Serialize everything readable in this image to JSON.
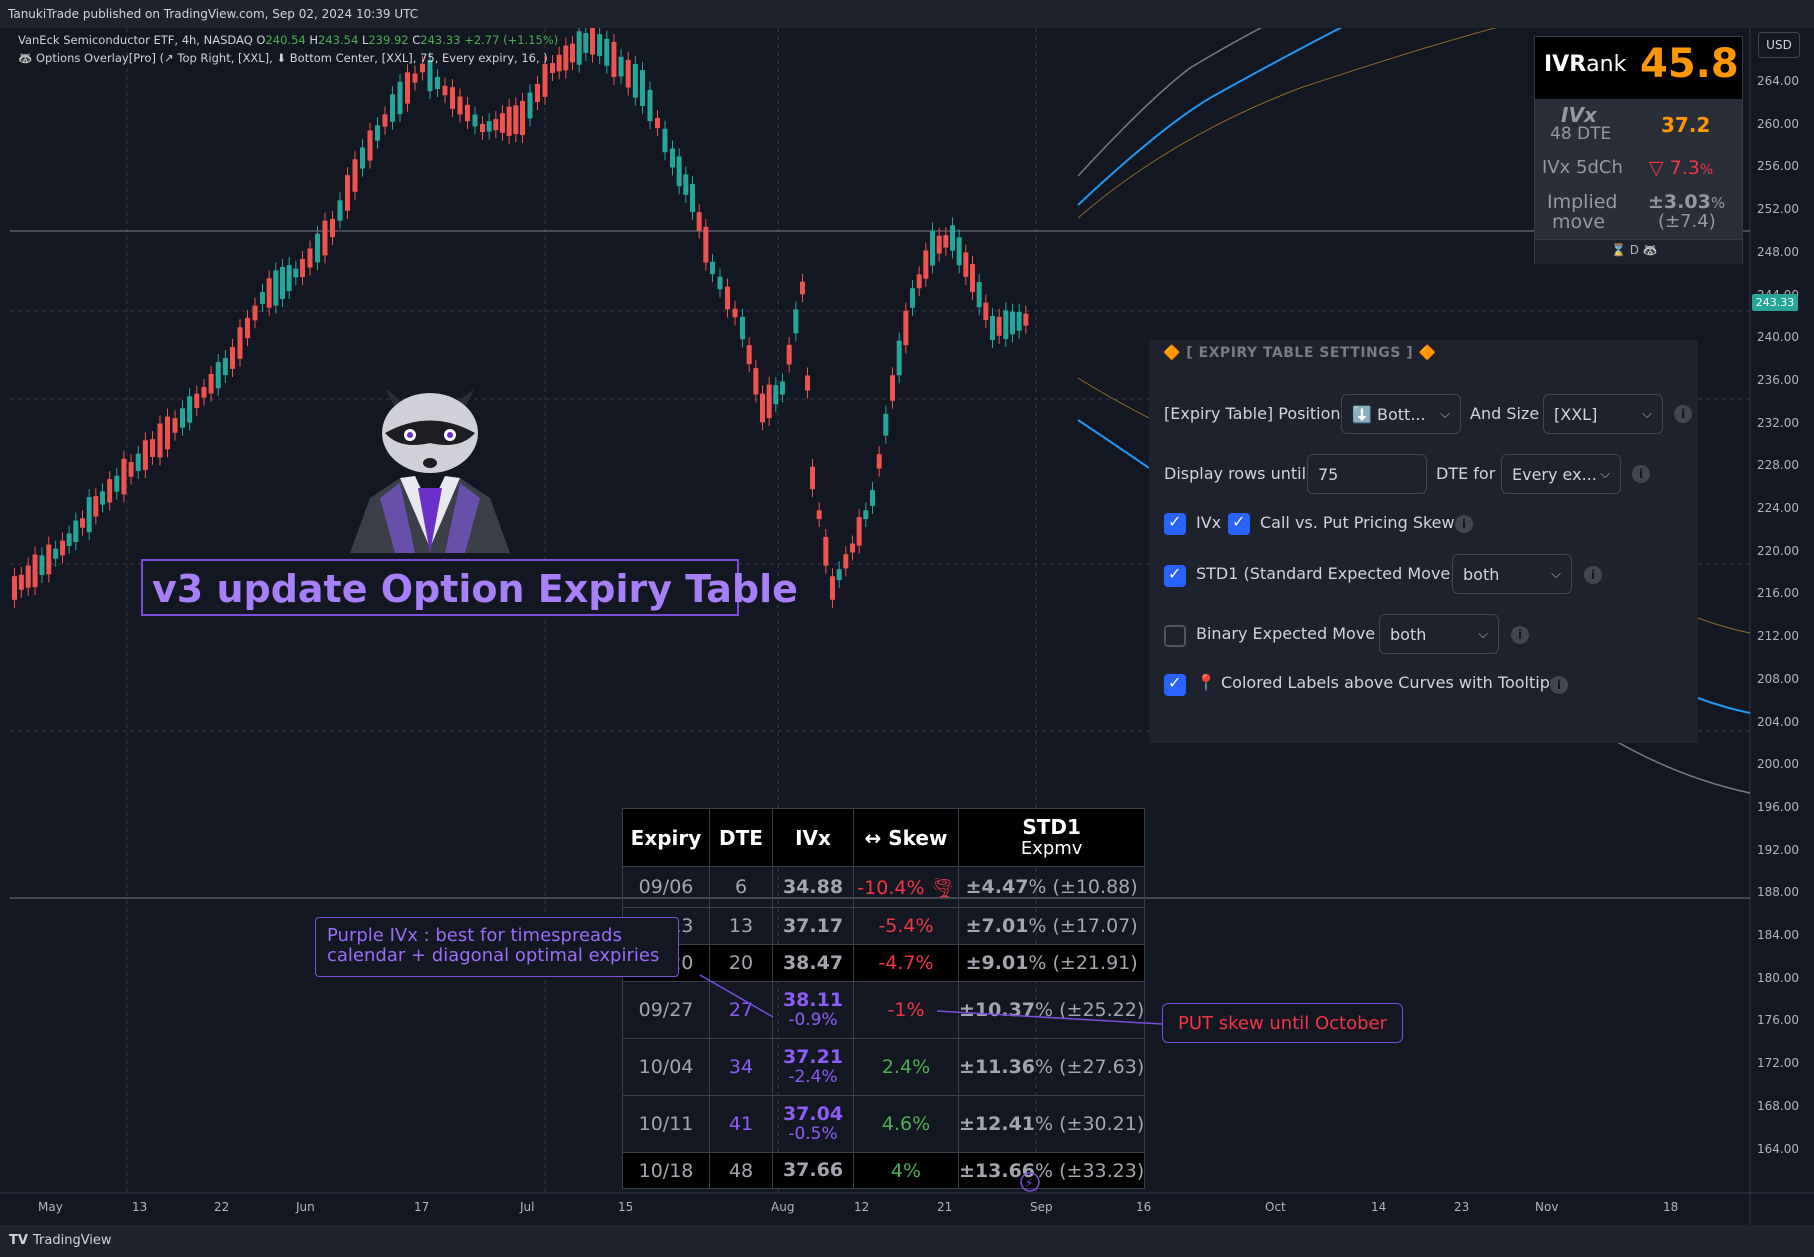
{
  "header": {
    "published": "TanukiTrade published on TradingView.com, Sep 02, 2024 10:39 UTC"
  },
  "legend": {
    "symbol_line": "VanEck Semiconductor ETF, 4h, NASDAQ",
    "o_label": "O",
    "o_value": "240.54",
    "h_label": "H",
    "h_value": "243.54",
    "l_label": "L",
    "l_value": "239.92",
    "c_label": "C",
    "c_value": "243.33",
    "change": "+2.77 (+1.15%)",
    "indicator": "Options Overlay[Pro] (↗ Top Right, [XXL], ⬇ Bottom Center, [XXL], 75, Every expiry, 16, )"
  },
  "price_axis": {
    "currency": "USD",
    "current_price": "243.33",
    "ticks": [
      "264.00",
      "260.00",
      "256.00",
      "252.00",
      "248.00",
      "244.00",
      "240.00",
      "236.00",
      "232.00",
      "228.00",
      "224.00",
      "220.00",
      "216.00",
      "212.00",
      "208.00",
      "204.00",
      "200.00",
      "196.00",
      "192.00",
      "188.00",
      "184.00",
      "180.00",
      "176.00",
      "172.00",
      "168.00",
      "164.00"
    ]
  },
  "time_axis": {
    "ticks": [
      "May",
      "13",
      "22",
      "Jun",
      "17",
      "Jul",
      "15",
      "Aug",
      "12",
      "21",
      "Sep",
      "16",
      "Oct",
      "14",
      "23",
      "Nov",
      "18"
    ]
  },
  "ivrank": {
    "label_bold": "IVR",
    "label_rest": "ank",
    "value": "45.8",
    "ivx_label": "IVx",
    "dte_label": "48 DTE",
    "ivx_value": "37.2",
    "ivx5d_label": "IVx 5dCh",
    "ivx5d_value": "▽ 7.3",
    "ivx5d_unit": "%",
    "implied_label_1": "Implied",
    "implied_label_2": "move",
    "implied_value": "±3.03",
    "implied_unit": "%",
    "implied_abs": "(±7.4)",
    "footer": "⌛ D  🦝"
  },
  "settings": {
    "title": "🔶 [ EXPIRY TABLE SETTINGS ] 🔶",
    "position_label": "[Expiry Table] Position",
    "position_value": "⬇️ Bott...",
    "size_label": "And Size",
    "size_value": "[XXL]",
    "rows_label": "Display rows until",
    "rows_value": "75",
    "dte_for_label": "DTE for",
    "dte_for_value": "Every ex...",
    "ivx_label": "IVx",
    "skew_label": "Call vs. Put Pricing Skew",
    "std1_label": "STD1 (Standard Expected Move)",
    "std1_value": "both",
    "binary_label": "Binary Expected Move",
    "binary_value": "both",
    "colored_label": "📍 Colored Labels above Curves with Tooltips"
  },
  "expiry_table": {
    "headers": [
      "Expiry",
      "DTE",
      "IVx",
      "↔ Skew",
      "STD1",
      "Expmv"
    ],
    "rows": [
      {
        "expiry": "09/06",
        "dte": "6",
        "ivx": "34.88",
        "ivx_sub": "",
        "skew": "-10.4%",
        "skew_icon": "🌪",
        "std_pct": "±4.47",
        "std_abs": "% (±10.88)"
      },
      {
        "expiry": "09/13",
        "dte": "13",
        "ivx": "37.17",
        "ivx_sub": "",
        "skew": "-5.4%",
        "skew_icon": "",
        "std_pct": "±7.01",
        "std_abs": "% (±17.07)"
      },
      {
        "expiry": "09/20",
        "dte": "20",
        "ivx": "38.47",
        "ivx_sub": "",
        "skew": "-4.7%",
        "skew_icon": "",
        "std_pct": "±9.01",
        "std_abs": "% (±21.91)"
      },
      {
        "expiry": "09/27",
        "dte": "27",
        "ivx": "38.11",
        "ivx_sub": "-0.9%",
        "skew": "-1%",
        "skew_icon": "",
        "std_pct": "±10.37",
        "std_abs": "% (±25.22)"
      },
      {
        "expiry": "10/04",
        "dte": "34",
        "ivx": "37.21",
        "ivx_sub": "-2.4%",
        "skew": "2.4%",
        "skew_icon": "",
        "std_pct": "±11.36",
        "std_abs": "% (±27.63)"
      },
      {
        "expiry": "10/11",
        "dte": "41",
        "ivx": "37.04",
        "ivx_sub": "-0.5%",
        "skew": "4.6%",
        "skew_icon": "",
        "std_pct": "±12.41",
        "std_abs": "% (±30.21)"
      },
      {
        "expiry": "10/18",
        "dte": "48",
        "ivx": "37.66",
        "ivx_sub": "",
        "skew": "4%",
        "skew_icon": "",
        "std_pct": "±13.66",
        "std_abs": "% (±33.23)"
      }
    ]
  },
  "annotations": {
    "title": "v3 update Option Expiry Table",
    "purple_note_1": "Purple IVx : best for timespreads",
    "purple_note_2": "calendar + diagonal optimal expiries",
    "put_note": "PUT skew until October"
  },
  "footer": {
    "brand": "TradingView"
  },
  "colors": {
    "background": "#131722",
    "up": "#26a69a",
    "down": "#ef5350",
    "accent_purple": "#8e5cf7",
    "ivrank_orange": "#ff9800"
  }
}
